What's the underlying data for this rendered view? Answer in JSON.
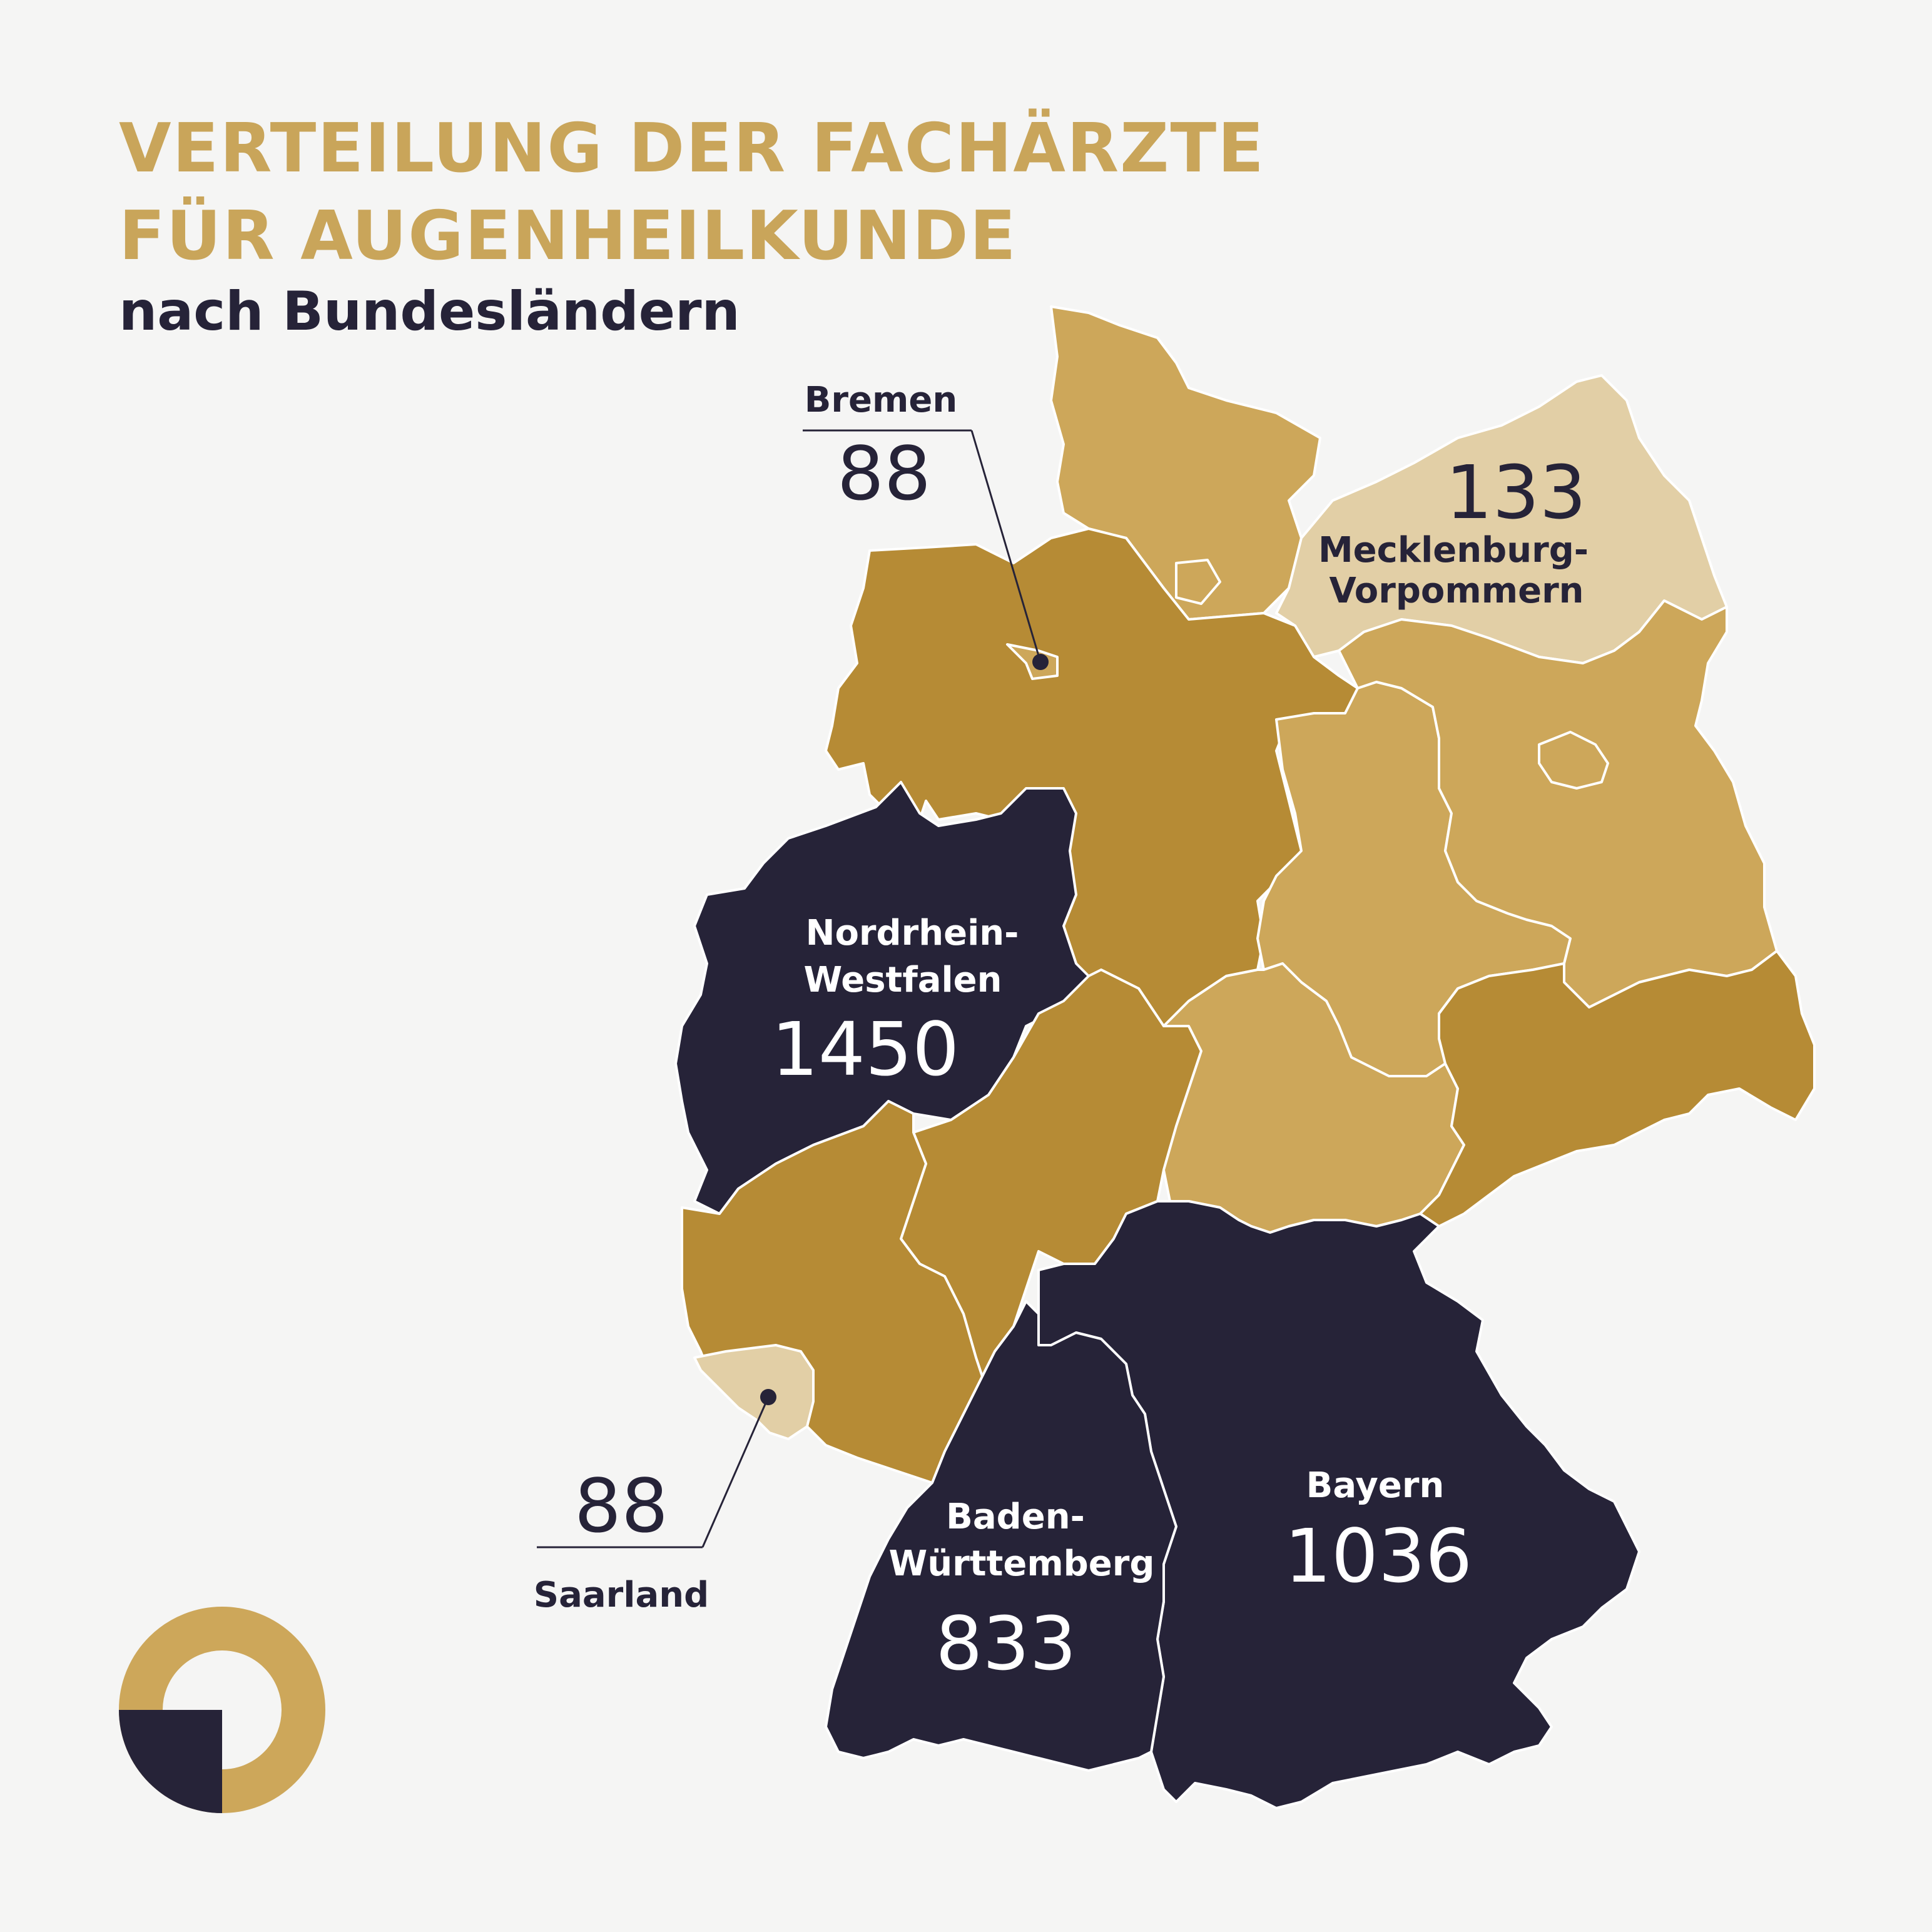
{
  "title": {
    "line1": "VERTEILUNG DER FACHÄRZTE",
    "line2": "FÜR AUGENHEILKUNDE"
  },
  "subtitle": "nach Bundesländern",
  "colors": {
    "background": "#f5f5f4",
    "title_gold": "#c9a55a",
    "dark_navy": "#262338",
    "gold_dark": "#b68b35",
    "gold_mid": "#cda75a",
    "gold_light": "#e2cfa6"
  },
  "states": {
    "bremen": {
      "name": "Bremen",
      "value": "88"
    },
    "mv": {
      "name_line1": "Mecklenburg-",
      "name_line2": "Vorpommern",
      "value": "133"
    },
    "nrw": {
      "name_line1": "Nordrhein-",
      "name_line2": "Westfalen",
      "value": "1450"
    },
    "saarland": {
      "name": "Saarland",
      "value": "88"
    },
    "bw": {
      "name_line1": "Baden-",
      "name_line2": "Württemberg",
      "value": "833"
    },
    "bayern": {
      "name": "Bayern",
      "value": "1036"
    }
  },
  "logo": {
    "icon": "ring-quarter-logo-icon"
  }
}
